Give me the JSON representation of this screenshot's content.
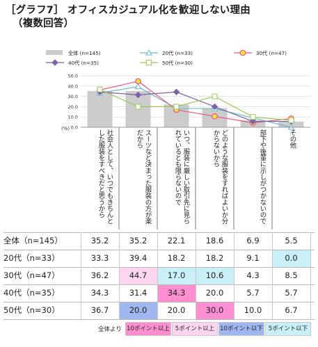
{
  "title": {
    "line1": "［グラフ7］ オフィスカジュアル化を歓迎しない理由",
    "line2": "（複数回答）"
  },
  "chart_data": {
    "type": "bar",
    "ylim": [
      0,
      50
    ],
    "yticks": [
      "0.0",
      "10.0",
      "20.0",
      "30.0",
      "40.0",
      "50.0"
    ],
    "yunit": "(%)",
    "categories": [
      "社会人として、いつでもきちんとした服装をすべきだと思うから",
      "スーツなど決まった服装の方が楽だから",
      "いつ、服装に厳しい取引先に見られているとも限らないので",
      "どのような服装をすればよいか分からないから",
      "部下や後輩に示しがつかないので",
      "その他"
    ],
    "series": [
      {
        "name": "全体 (n=145)",
        "kind": "bar",
        "values": [
          35.2,
          35.2,
          22.1,
          18.6,
          6.9,
          5.5
        ],
        "color": "#cccccc"
      },
      {
        "name": "20代 (n=33)",
        "kind": "line",
        "marker": "triangle",
        "values": [
          33.3,
          39.4,
          18.2,
          18.2,
          9.1,
          0.0
        ],
        "color": "#6fb6c9"
      },
      {
        "name": "30代 (n=47)",
        "kind": "line",
        "marker": "circle",
        "values": [
          36.2,
          44.7,
          17.0,
          10.6,
          4.3,
          8.5
        ],
        "color": "#e8567f",
        "fill": "#f5e04a"
      },
      {
        "name": "40代 (n=35)",
        "kind": "line",
        "marker": "diamond",
        "values": [
          34.3,
          31.4,
          34.3,
          20.0,
          5.7,
          5.7
        ],
        "color": "#7a62a8"
      },
      {
        "name": "50代 (n=30)",
        "kind": "line",
        "marker": "square",
        "values": [
          36.7,
          20.0,
          20.0,
          30.0,
          10.0,
          6.7
        ],
        "color": "#9cc75a"
      }
    ]
  },
  "table": {
    "rows": [
      {
        "label": "全体（n=145）",
        "values": [
          "35.2",
          "35.2",
          "22.1",
          "18.6",
          "6.9",
          "5.5"
        ],
        "highlights": [
          "",
          "",
          "",
          "",
          "",
          ""
        ]
      },
      {
        "label": "20代（n=33）",
        "values": [
          "33.3",
          "39.4",
          "18.2",
          "18.2",
          "9.1",
          "0.0"
        ],
        "highlights": [
          "",
          "",
          "",
          "",
          "",
          "lightblue"
        ]
      },
      {
        "label": "30代（n=47）",
        "values": [
          "36.2",
          "44.7",
          "17.0",
          "10.6",
          "4.3",
          "8.5"
        ],
        "highlights": [
          "",
          "lightpink",
          "lightblue",
          "lightblue",
          "",
          ""
        ]
      },
      {
        "label": "40代（n=35）",
        "values": [
          "34.3",
          "31.4",
          "34.3",
          "20.0",
          "5.7",
          "5.7"
        ],
        "highlights": [
          "",
          "",
          "pink",
          "",
          "",
          ""
        ]
      },
      {
        "label": "50代（n=30）",
        "values": [
          "36.7",
          "20.0",
          "20.0",
          "30.0",
          "10.0",
          "6.7"
        ],
        "highlights": [
          "",
          "blue",
          "",
          "pink",
          "",
          ""
        ]
      }
    ]
  },
  "footer": {
    "prefix": "全体より",
    "keys": [
      {
        "label": "10ポイント以上",
        "color": "#ff8fd0"
      },
      {
        "label": "5ポイント以上",
        "color": "#ffd6f2"
      },
      {
        "label": "10ポイント以下",
        "color": "#9fb6f0"
      },
      {
        "label": "5ポイント以下",
        "color": "#c9f0f7"
      }
    ]
  },
  "colors": {
    "pink": "#ff8fd0",
    "lightpink": "#ffd6f2",
    "blue": "#9fb6f0",
    "lightblue": "#c9f0f7"
  }
}
